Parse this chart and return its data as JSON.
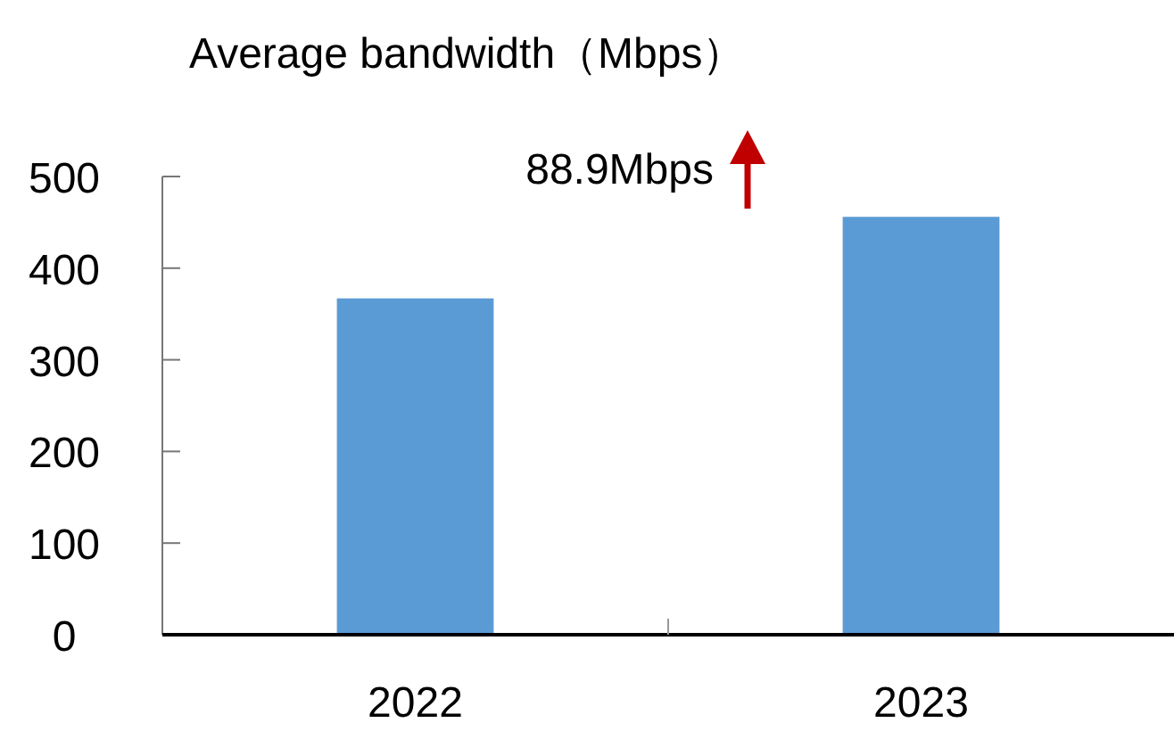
{
  "chart_data": {
    "type": "bar",
    "title": "Average bandwidth（Mbps）",
    "categories": [
      "2022",
      "2023"
    ],
    "values": [
      367,
      456
    ],
    "color": "#5b9bd5",
    "ylim": [
      0,
      500
    ],
    "yticks": [
      0,
      100,
      200,
      300,
      400,
      500
    ],
    "annotations": [
      "88.9Mbps"
    ]
  }
}
